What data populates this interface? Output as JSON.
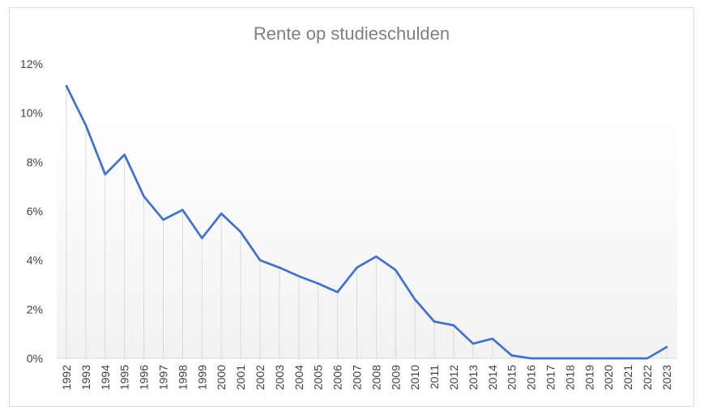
{
  "chart_data": {
    "type": "line",
    "title": "Rente op studieschulden",
    "xlabel": "",
    "ylabel": "",
    "ylim": [
      0,
      12
    ],
    "yticks": [
      "0%",
      "2%",
      "4%",
      "6%",
      "8%",
      "10%",
      "12%"
    ],
    "categories": [
      "1992",
      "1993",
      "1994",
      "1995",
      "1996",
      "1997",
      "1998",
      "1999",
      "2000",
      "2001",
      "2002",
      "2003",
      "2004",
      "2005",
      "2006",
      "2007",
      "2008",
      "2009",
      "2010",
      "2011",
      "2012",
      "2013",
      "2014",
      "2015",
      "2016",
      "2017",
      "2018",
      "2019",
      "2020",
      "2021",
      "2022",
      "2023"
    ],
    "series": [
      {
        "name": "",
        "color": "#4472c4",
        "values": [
          11.1,
          9.5,
          7.5,
          8.3,
          6.6,
          5.65,
          6.05,
          4.9,
          5.9,
          5.15,
          4.0,
          3.7,
          3.35,
          3.05,
          2.7,
          3.7,
          4.15,
          3.6,
          2.4,
          1.5,
          1.35,
          0.6,
          0.8,
          0.12,
          0.0,
          0.0,
          0.0,
          0.0,
          0.0,
          0.0,
          0.0,
          0.46
        ]
      }
    ],
    "grid": false,
    "drop_lines": true,
    "legend": "none"
  }
}
